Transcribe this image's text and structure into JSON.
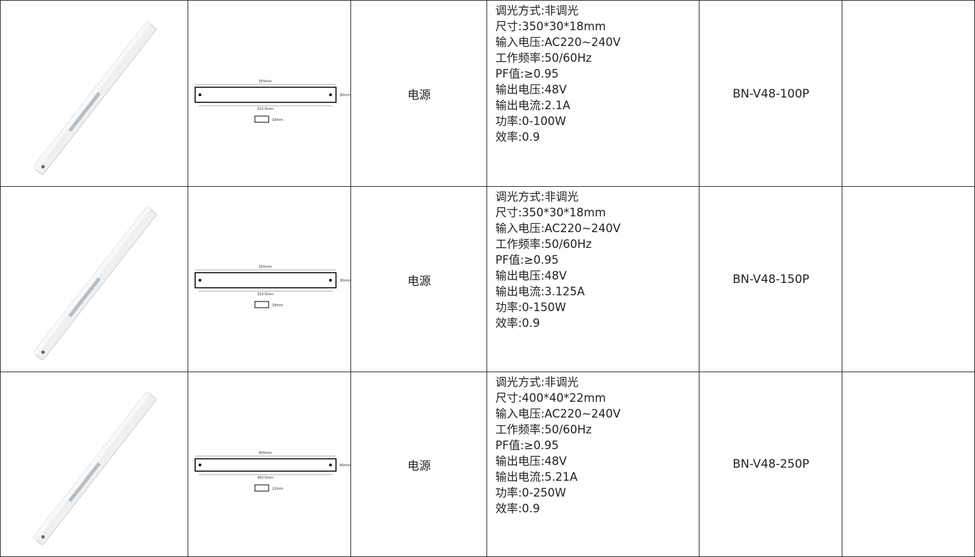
{
  "table": {
    "rows": [
      {
        "drawing": {
          "length": "350mm",
          "inner": "310.5mm",
          "height": "30mm",
          "depth": "18mm"
        },
        "category": "电源",
        "specs": [
          "调光方式:非调光",
          "尺寸:350*30*18mm",
          "输入电压:AC220~240V",
          "工作频率:50/60Hz",
          "PF值:≥0.95",
          "输出电压:48V",
          "输出电流:2.1A",
          "功率:0-100W",
          "效率:0.9"
        ],
        "model": "BN-V48-100P"
      },
      {
        "drawing": {
          "length": "350mm",
          "inner": "310.5mm",
          "height": "30mm",
          "depth": "18mm"
        },
        "category": "电源",
        "specs": [
          "调光方式:非调光",
          "尺寸:350*30*18mm",
          "输入电压:AC220~240V",
          "工作频率:50/60Hz",
          "PF值:≥0.95",
          "输出电压:48V",
          "输出电流:3.125A",
          "功率:0-150W",
          "效率:0.9"
        ],
        "model": "BN-V48-150P"
      },
      {
        "drawing": {
          "length": "400mm",
          "inner": "360.5mm",
          "height": "40mm",
          "depth": "22mm"
        },
        "category": "电源",
        "specs": [
          "调光方式:非调光",
          "尺寸:400*40*22mm",
          "输入电压:AC220~240V",
          "工作频率:50/60Hz",
          "PF值:≥0.95",
          "输出电压:48V",
          "输出电流:5.21A",
          "功率:0-250W",
          "效率:0.9"
        ],
        "model": "BN-V48-250P"
      }
    ]
  }
}
